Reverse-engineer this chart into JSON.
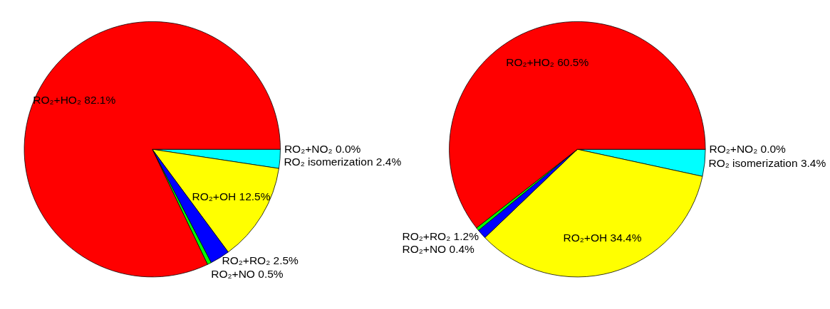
{
  "chart_data": [
    {
      "type": "pie",
      "categories": [
        "RO₂+NO₂",
        "RO₂ isomerization",
        "RO₂+OH",
        "RO₂+RO₂",
        "RO₂+NO",
        "RO₂+HO₂"
      ],
      "values": [
        0.0,
        2.4,
        12.5,
        2.5,
        0.5,
        82.1
      ],
      "value_labels": [
        "0.0%",
        "2.4%",
        "12.5%",
        "2.5%",
        "0.5%",
        "82.1%"
      ],
      "colors": [
        "#ff00ff",
        "#00ffff",
        "#ffff00",
        "#0000ff",
        "#00ff00",
        "#ff0000"
      ],
      "legend": false
    },
    {
      "type": "pie",
      "categories": [
        "RO₂+NO₂",
        "RO₂ isomerization",
        "RO₂+OH",
        "RO₂+RO₂",
        "RO₂+NO",
        "RO₂+HO₂"
      ],
      "values": [
        0.0,
        3.4,
        34.4,
        1.2,
        0.4,
        60.5
      ],
      "value_labels": [
        "0.0%",
        "3.4%",
        "34.4%",
        "1.2%",
        "0.4%",
        "60.5%"
      ],
      "colors": [
        "#ff00ff",
        "#00ffff",
        "#ffff00",
        "#0000ff",
        "#00ff00",
        "#ff0000"
      ],
      "legend": false
    }
  ]
}
